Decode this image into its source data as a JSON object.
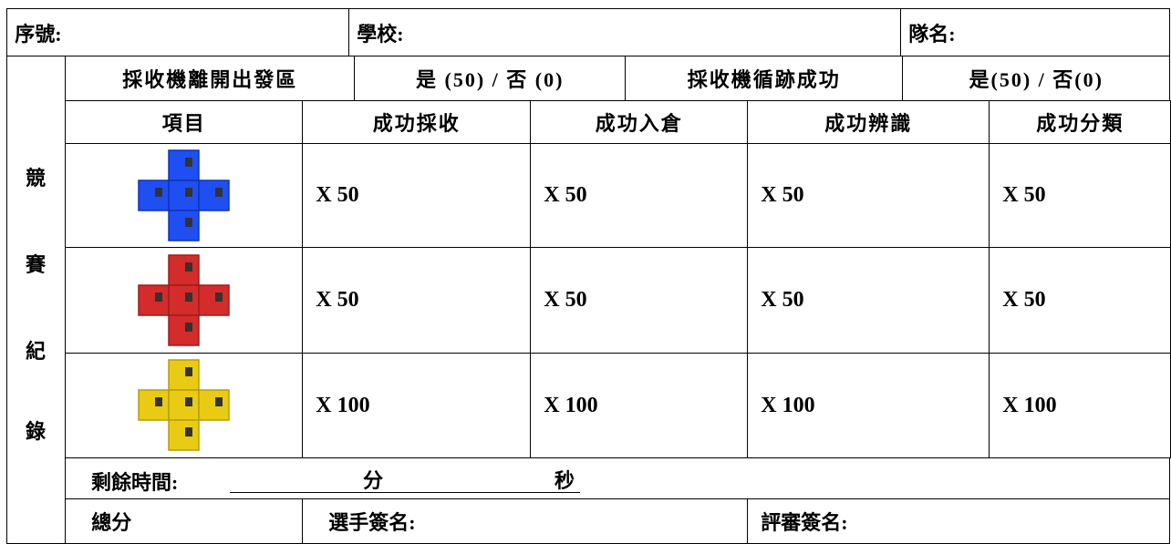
{
  "header": {
    "serial_label": "序號:",
    "school_label": "學校:",
    "team_label": "隊名:"
  },
  "checks": [
    {
      "label": "採收機離開出發區",
      "options": "是 (50) / 否 (0)"
    },
    {
      "label": "採收機循跡成功",
      "options": "是(50) / 否(0)"
    }
  ],
  "side_label": [
    "競",
    "賽",
    "紀",
    "錄"
  ],
  "table": {
    "columns": [
      "項目",
      "成功採收",
      "成功入倉",
      "成功辨識",
      "成功分類"
    ],
    "rows": [
      [
        "X 50",
        "X 50",
        "X 50",
        "X 50"
      ],
      [
        "X 50",
        "X 50",
        "X 50",
        "X 50"
      ],
      [
        "X 100",
        "X 100",
        "X 100",
        "X 100"
      ]
    ]
  },
  "time": {
    "label": "剩餘時間:",
    "minutes": "分",
    "seconds": "秒"
  },
  "footer": {
    "total": "總分",
    "player_sign": "選手簽名:",
    "judge_sign": "評審簽名:"
  }
}
